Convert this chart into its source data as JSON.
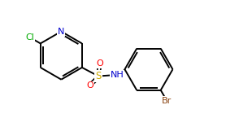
{
  "bg_color": "#ffffff",
  "bond_color": "#000000",
  "atom_colors": {
    "N": "#0000cd",
    "O": "#ff0000",
    "S": "#ccaa00",
    "Cl": "#00aa00",
    "Br": "#8b4513",
    "C": "#000000",
    "H": "#000000"
  },
  "figsize": [
    2.94,
    1.56
  ],
  "dpi": 100,
  "xlim": [
    0,
    9.5
  ],
  "ylim": [
    0,
    5.5
  ]
}
